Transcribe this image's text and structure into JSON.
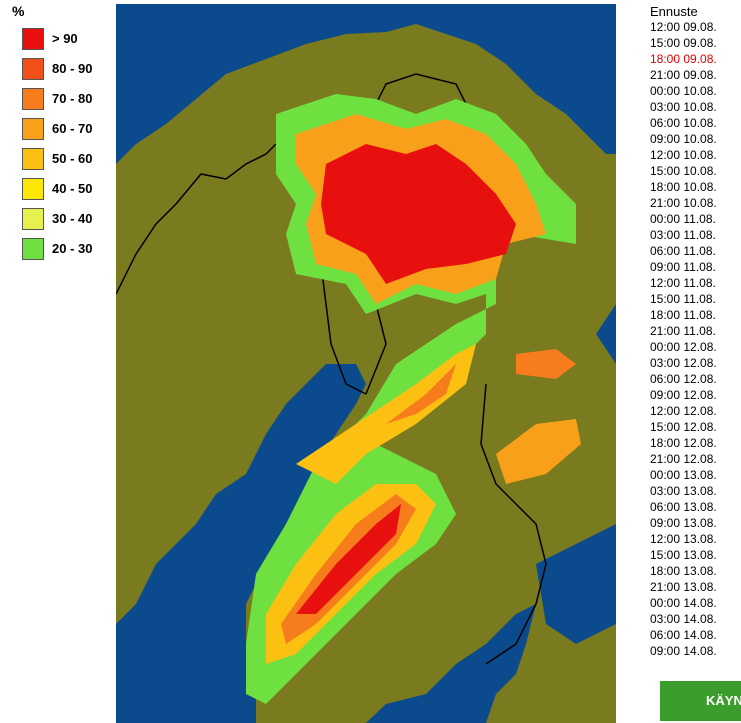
{
  "legend": {
    "title": "%",
    "items": [
      {
        "label": "> 90",
        "color": "#e8100e"
      },
      {
        "label": "80 - 90",
        "color": "#f2501a"
      },
      {
        "label": "70 - 80",
        "color": "#f67c1c"
      },
      {
        "label": "60 - 70",
        "color": "#f9a01a"
      },
      {
        "label": "50 - 60",
        "color": "#fcc012"
      },
      {
        "label": "40 - 50",
        "color": "#fce602"
      },
      {
        "label": "30 - 40",
        "color": "#e6f04e"
      },
      {
        "label": "20 - 30",
        "color": "#6ee040"
      }
    ]
  },
  "forecast": {
    "title": "Ennuste",
    "selected_index": 2,
    "times": [
      "12:00 09.08.",
      "15:00 09.08.",
      "18:00 09.08.",
      "21:00 09.08.",
      "00:00 10.08.",
      "03:00 10.08.",
      "06:00 10.08.",
      "09:00 10.08.",
      "12:00 10.08.",
      "15:00 10.08.",
      "18:00 10.08.",
      "21:00 10.08.",
      "00:00 11.08.",
      "03:00 11.08.",
      "06:00 11.08.",
      "09:00 11.08.",
      "12:00 11.08.",
      "15:00 11.08.",
      "18:00 11.08.",
      "21:00 11.08.",
      "00:00 12.08.",
      "03:00 12.08.",
      "06:00 12.08.",
      "09:00 12.08.",
      "12:00 12.08.",
      "15:00 12.08.",
      "18:00 12.08.",
      "21:00 12.08.",
      "00:00 13.08.",
      "03:00 13.08.",
      "06:00 13.08.",
      "09:00 13.08.",
      "12:00 13.08.",
      "15:00 13.08.",
      "18:00 13.08.",
      "21:00 13.08.",
      "00:00 14.08.",
      "03:00 14.08.",
      "06:00 14.08.",
      "09:00 14.08."
    ]
  },
  "button": {
    "label": "KÄYN"
  }
}
